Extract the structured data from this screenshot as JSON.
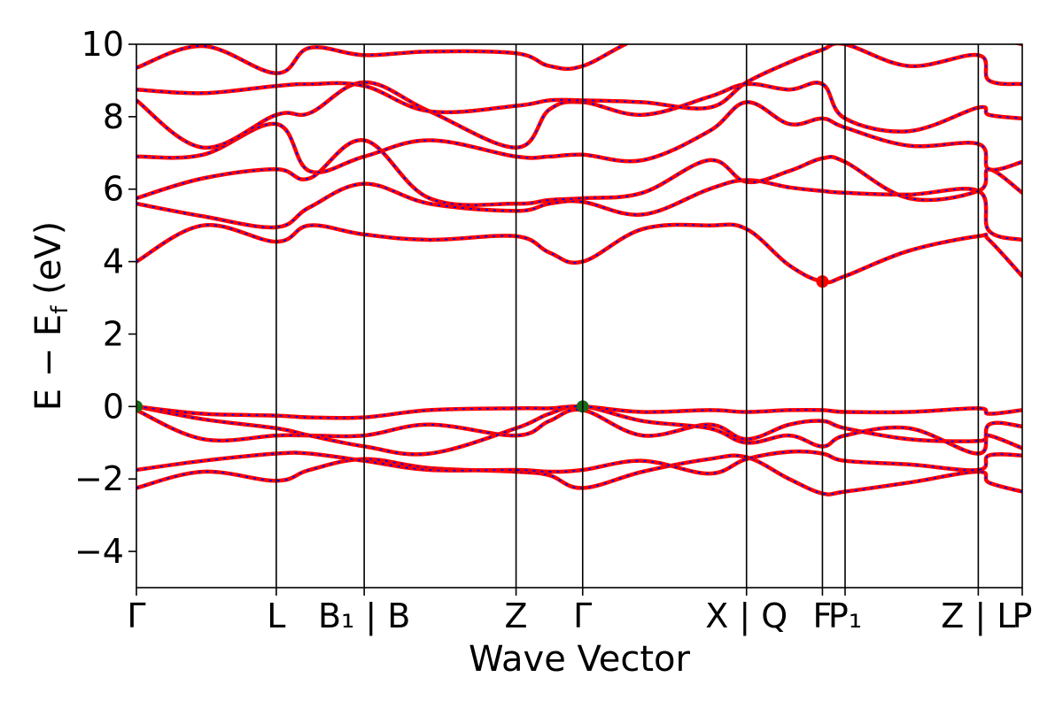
{
  "chart_data": {
    "type": "line",
    "xlabel": "Wave Vector",
    "ylabel": "E − E",
    "ylabel_sub": "f",
    "ylabel_unit": " (eV)",
    "ylim": [
      -5,
      10
    ],
    "yticks": [
      -4,
      -2,
      0,
      2,
      4,
      6,
      8,
      10
    ],
    "ytick_labels": [
      "−4",
      "−2",
      "0",
      "2",
      "4",
      "6",
      "8",
      "10"
    ],
    "xlim": [
      0,
      6.65
    ],
    "kpoints": [
      {
        "x": 0.0,
        "label": "Γ"
      },
      {
        "x": 1.05,
        "label": "L"
      },
      {
        "x": 1.71,
        "label": "B₁ | B"
      },
      {
        "x": 2.85,
        "label": "Z"
      },
      {
        "x": 3.35,
        "label": "Γ"
      },
      {
        "x": 4.58,
        "label": "X | Q"
      },
      {
        "x": 5.15,
        "label": "F"
      },
      {
        "x": 5.32,
        "label": "P₁"
      },
      {
        "x": 6.32,
        "label": "Z | L"
      },
      {
        "x": 6.65,
        "label": "P"
      }
    ],
    "line_colors": {
      "primary": "#ff0000",
      "secondary": "#0000ff"
    },
    "vbm_points": [
      {
        "x": 0.0,
        "y": 0.0
      },
      {
        "x": 3.35,
        "y": 0.0
      }
    ],
    "cbm_points": [
      {
        "x": 5.15,
        "y": 3.45
      }
    ],
    "marker_colors": {
      "vbm": "#1a6b1a",
      "cbm": "#ff0000"
    },
    "bands": [
      {
        "x": [
          0,
          0.5,
          1.05,
          1.3,
          1.71,
          2.2,
          2.85,
          3.1,
          3.35,
          3.8,
          4.3,
          4.58,
          4.9,
          5.15,
          5.32,
          5.8,
          6.32,
          6.4,
          6.65
        ],
        "y": [
          -2.25,
          -1.8,
          -2.05,
          -1.75,
          -1.45,
          -1.7,
          -1.8,
          -1.9,
          -2.25,
          -1.8,
          -1.45,
          -1.4,
          -2.0,
          -2.4,
          -2.35,
          -2.1,
          -1.8,
          -2.1,
          -2.35
        ]
      },
      {
        "x": [
          0,
          0.5,
          1.05,
          1.3,
          1.71,
          2.2,
          2.85,
          3.1,
          3.35,
          3.8,
          4.3,
          4.58,
          4.9,
          5.15,
          5.32,
          5.8,
          6.32,
          6.4,
          6.65
        ],
        "y": [
          -1.75,
          -1.5,
          -1.3,
          -1.3,
          -1.5,
          -1.75,
          -1.75,
          -1.8,
          -1.75,
          -1.5,
          -1.85,
          -1.45,
          -1.25,
          -1.3,
          -1.5,
          -1.6,
          -1.75,
          -1.35,
          -1.35
        ]
      },
      {
        "x": [
          0,
          0.5,
          1.05,
          1.3,
          1.71,
          2.2,
          2.85,
          3.1,
          3.35,
          3.8,
          4.3,
          4.58,
          4.9,
          5.15,
          5.32,
          5.8,
          6.32,
          6.4,
          6.65
        ],
        "y": [
          -0.1,
          -0.9,
          -0.8,
          -0.8,
          -0.8,
          -0.5,
          -0.8,
          -0.4,
          -0.1,
          -0.8,
          -0.5,
          -0.9,
          -0.5,
          -0.4,
          -0.6,
          -0.9,
          -0.95,
          -0.8,
          -1.15
        ]
      },
      {
        "x": [
          0,
          0.5,
          1.05,
          1.3,
          1.71,
          2.2,
          2.85,
          3.1,
          3.35,
          3.8,
          4.3,
          4.58,
          4.9,
          5.15,
          5.32,
          5.8,
          6.32,
          6.4,
          6.65
        ],
        "y": [
          0.0,
          -0.35,
          -0.6,
          -0.8,
          -1.1,
          -1.3,
          -0.6,
          -0.2,
          0.0,
          -0.4,
          -0.6,
          -1.0,
          -0.8,
          -1.1,
          -0.8,
          -0.6,
          -1.3,
          -0.5,
          -0.55
        ]
      },
      {
        "x": [
          0,
          0.5,
          1.05,
          1.3,
          1.71,
          2.2,
          2.85,
          3.1,
          3.35,
          3.8,
          4.3,
          4.58,
          4.9,
          5.15,
          5.32,
          5.8,
          6.32,
          6.4,
          6.65
        ],
        "y": [
          0.0,
          -0.2,
          -0.25,
          -0.3,
          -0.3,
          -0.1,
          -0.05,
          -0.05,
          0.0,
          -0.15,
          -0.1,
          -0.15,
          -0.1,
          -0.1,
          -0.15,
          -0.15,
          -0.05,
          -0.2,
          -0.1
        ]
      },
      {
        "x": [
          0,
          0.5,
          1.05,
          1.3,
          1.71,
          2.2,
          2.85,
          3.1,
          3.35,
          3.8,
          4.3,
          4.58,
          4.9,
          5.15,
          5.32,
          5.8,
          6.32,
          6.4,
          6.65
        ],
        "y": [
          4.0,
          5.0,
          4.55,
          5.0,
          4.75,
          4.6,
          4.7,
          4.25,
          4.0,
          4.9,
          5.0,
          4.9,
          3.9,
          3.45,
          3.6,
          4.3,
          4.7,
          4.6,
          3.6
        ]
      },
      {
        "x": [
          0,
          0.5,
          1.05,
          1.3,
          1.71,
          2.2,
          2.85,
          3.1,
          3.35,
          3.8,
          4.3,
          4.58,
          4.9,
          5.15,
          5.32,
          5.8,
          6.32,
          6.4,
          6.65
        ],
        "y": [
          5.6,
          5.25,
          4.95,
          5.5,
          6.15,
          5.6,
          5.4,
          5.6,
          5.65,
          5.3,
          6.0,
          6.25,
          6.05,
          5.95,
          5.9,
          5.85,
          5.95,
          4.85,
          4.6
        ]
      },
      {
        "x": [
          0,
          0.5,
          1.05,
          1.3,
          1.71,
          2.2,
          2.85,
          3.1,
          3.35,
          3.8,
          4.3,
          4.58,
          4.9,
          5.15,
          5.32,
          5.8,
          6.32,
          6.4,
          6.65
        ],
        "y": [
          5.75,
          6.3,
          6.55,
          6.3,
          7.35,
          5.75,
          5.6,
          5.7,
          5.75,
          5.9,
          6.8,
          6.2,
          6.5,
          6.85,
          6.75,
          5.75,
          5.95,
          6.55,
          5.9
        ]
      },
      {
        "x": [
          0,
          0.5,
          1.05,
          1.3,
          1.71,
          2.2,
          2.85,
          3.1,
          3.35,
          3.8,
          4.3,
          4.58,
          4.9,
          5.15,
          5.32,
          5.8,
          6.32,
          6.4,
          6.65
        ],
        "y": [
          6.9,
          6.95,
          7.8,
          6.5,
          6.9,
          7.35,
          6.9,
          6.9,
          6.95,
          6.8,
          7.6,
          8.4,
          7.8,
          7.95,
          7.7,
          7.2,
          7.25,
          6.55,
          6.75
        ]
      },
      {
        "x": [
          0,
          0.5,
          1.05,
          1.3,
          1.71,
          2.2,
          2.85,
          3.1,
          3.35,
          3.8,
          4.3,
          4.58,
          4.9,
          5.15,
          5.32,
          5.8,
          6.32,
          6.4,
          6.65
        ],
        "y": [
          8.45,
          7.15,
          8.05,
          8.1,
          8.95,
          8.15,
          7.15,
          8.2,
          8.4,
          8.05,
          8.55,
          8.9,
          8.75,
          8.9,
          7.95,
          7.6,
          8.25,
          8.05,
          7.95
        ]
      },
      {
        "x": [
          0,
          0.5,
          1.05,
          1.3,
          1.71,
          2.2,
          2.85,
          3.1,
          3.35,
          3.8,
          4.3,
          4.58,
          4.9,
          5.15,
          5.32,
          5.8,
          6.32,
          6.4,
          6.65
        ],
        "y": [
          8.75,
          8.65,
          8.85,
          8.9,
          8.85,
          8.15,
          8.3,
          8.45,
          8.45,
          8.4,
          8.25,
          8.95,
          9.5,
          9.85,
          10.0,
          9.4,
          9.7,
          9.0,
          8.9
        ]
      },
      {
        "x": [
          0,
          0.5,
          1.05,
          1.3,
          1.71,
          2.2,
          2.85,
          3.1,
          3.35,
          3.8,
          4.3,
          4.58,
          4.9,
          5.15,
          5.32,
          5.8,
          6.32,
          6.4,
          6.65
        ],
        "y": [
          9.35,
          9.95,
          9.2,
          9.9,
          9.7,
          9.8,
          9.75,
          9.4,
          9.4,
          10.2,
          10.5,
          10.5,
          10.5,
          10.5,
          10.5,
          10.4,
          10.3,
          10.2,
          10.0
        ]
      }
    ]
  }
}
